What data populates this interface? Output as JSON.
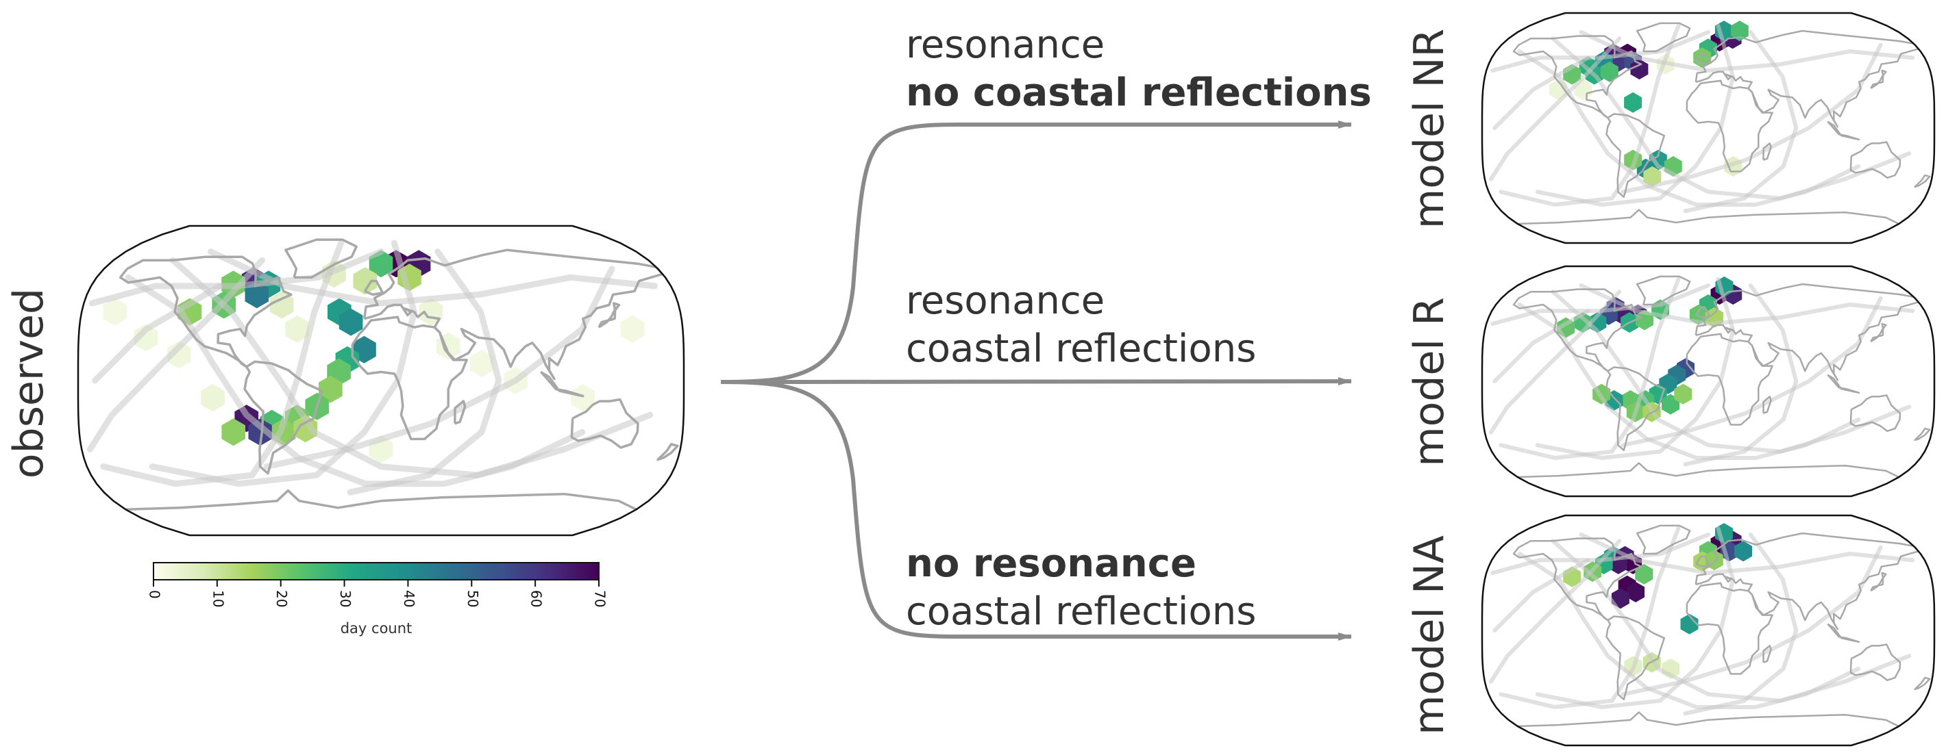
{
  "colors": {
    "ink": "#333333",
    "arrow": "#8a8a8a",
    "coast": "#a8a8a8",
    "track": "#c8c8c8",
    "ocean": "#ffffff",
    "viridis_stops": [
      "#fdfdf0",
      "#d9ebb6",
      "#a5d25e",
      "#58c16c",
      "#22a884",
      "#21908d",
      "#2c728e",
      "#3b528b",
      "#472d7b",
      "#440154"
    ]
  },
  "observed": {
    "label": "observed",
    "colorbar": {
      "label": "day count",
      "ticks": [
        "0",
        "10",
        "20",
        "30",
        "40",
        "50",
        "60",
        "70"
      ],
      "min": 0,
      "max": 70
    }
  },
  "scenarios": [
    {
      "line1": "resonance",
      "line2": "no coastal reflections",
      "bold_line": 2,
      "model_label": "model NR"
    },
    {
      "line1": "resonance",
      "line2": "coastal reflections",
      "bold_line": 0,
      "model_label": "model R"
    },
    {
      "line1": "no resonance",
      "line2": "coastal reflections",
      "bold_line": 1,
      "model_label": "model NA"
    }
  ],
  "hex_maps": {
    "observed": [
      {
        "lon": -80,
        "lat": 58,
        "v": 62
      },
      {
        "lon": -92,
        "lat": 56,
        "v": 20
      },
      {
        "lon": -70,
        "lat": 56,
        "v": 35
      },
      {
        "lon": -76,
        "lat": 50,
        "v": 45
      },
      {
        "lon": -95,
        "lat": 44,
        "v": 22
      },
      {
        "lon": -115,
        "lat": 40,
        "v": 18
      },
      {
        "lon": -60,
        "lat": 44,
        "v": 8
      },
      {
        "lon": -50,
        "lat": 30,
        "v": 5
      },
      {
        "lon": 10,
        "lat": 68,
        "v": 70
      },
      {
        "lon": 25,
        "lat": 68,
        "v": 66
      },
      {
        "lon": 0,
        "lat": 68,
        "v": 25
      },
      {
        "lon": 18,
        "lat": 60,
        "v": 15
      },
      {
        "lon": -10,
        "lat": 58,
        "v": 10
      },
      {
        "lon": -30,
        "lat": 62,
        "v": 8
      },
      {
        "lon": -25,
        "lat": 40,
        "v": 35
      },
      {
        "lon": -18,
        "lat": 34,
        "v": 40
      },
      {
        "lon": -10,
        "lat": 18,
        "v": 42
      },
      {
        "lon": -20,
        "lat": 12,
        "v": 30
      },
      {
        "lon": -25,
        "lat": 5,
        "v": 22
      },
      {
        "lon": -30,
        "lat": -5,
        "v": 18
      },
      {
        "lon": -38,
        "lat": -15,
        "v": 22
      },
      {
        "lon": -50,
        "lat": -22,
        "v": 20
      },
      {
        "lon": -65,
        "lat": -25,
        "v": 25
      },
      {
        "lon": -80,
        "lat": -22,
        "v": 66
      },
      {
        "lon": -72,
        "lat": -30,
        "v": 58
      },
      {
        "lon": -88,
        "lat": -30,
        "v": 18
      },
      {
        "lon": -58,
        "lat": -30,
        "v": 18
      },
      {
        "lon": -45,
        "lat": -28,
        "v": 14
      },
      {
        "lon": -100,
        "lat": -10,
        "v": 5
      },
      {
        "lon": -120,
        "lat": 15,
        "v": 4
      },
      {
        "lon": -140,
        "lat": 25,
        "v": 4
      },
      {
        "lon": 40,
        "lat": 20,
        "v": 4
      },
      {
        "lon": 60,
        "lat": 10,
        "v": 3
      },
      {
        "lon": 80,
        "lat": 0,
        "v": 3
      },
      {
        "lon": 0,
        "lat": -40,
        "v": 4
      },
      {
        "lon": 30,
        "lat": 40,
        "v": 5
      },
      {
        "lon": -160,
        "lat": 40,
        "v": 3
      },
      {
        "lon": 150,
        "lat": 30,
        "v": 3
      },
      {
        "lon": 120,
        "lat": -10,
        "v": 3
      }
    ],
    "model_nr": [
      {
        "lon": -80,
        "lat": 58,
        "v": 65
      },
      {
        "lon": -68,
        "lat": 58,
        "v": 70
      },
      {
        "lon": -74,
        "lat": 52,
        "v": 60
      },
      {
        "lon": -86,
        "lat": 52,
        "v": 40
      },
      {
        "lon": -62,
        "lat": 52,
        "v": 55
      },
      {
        "lon": -56,
        "lat": 46,
        "v": 66
      },
      {
        "lon": -98,
        "lat": 48,
        "v": 30
      },
      {
        "lon": -110,
        "lat": 42,
        "v": 22
      },
      {
        "lon": -92,
        "lat": 42,
        "v": 30
      },
      {
        "lon": -80,
        "lat": 44,
        "v": 25
      },
      {
        "lon": -60,
        "lat": 20,
        "v": 30
      },
      {
        "lon": 10,
        "lat": 68,
        "v": 70
      },
      {
        "lon": 22,
        "lat": 70,
        "v": 66
      },
      {
        "lon": 15,
        "lat": 76,
        "v": 35
      },
      {
        "lon": 0,
        "lat": 62,
        "v": 28
      },
      {
        "lon": -5,
        "lat": 55,
        "v": 20
      },
      {
        "lon": 30,
        "lat": 76,
        "v": 25
      },
      {
        "lon": -40,
        "lat": -25,
        "v": 35
      },
      {
        "lon": -50,
        "lat": -32,
        "v": 40
      },
      {
        "lon": -28,
        "lat": -30,
        "v": 22
      },
      {
        "lon": -60,
        "lat": -25,
        "v": 20
      },
      {
        "lon": -45,
        "lat": -38,
        "v": 12
      },
      {
        "lon": 20,
        "lat": -30,
        "v": 8
      },
      {
        "lon": -120,
        "lat": 30,
        "v": 5
      },
      {
        "lon": -100,
        "lat": 30,
        "v": 5
      },
      {
        "lon": -35,
        "lat": 50,
        "v": 5
      }
    ],
    "model_r": [
      {
        "lon": -78,
        "lat": 58,
        "v": 60
      },
      {
        "lon": -70,
        "lat": 52,
        "v": 65
      },
      {
        "lon": -82,
        "lat": 52,
        "v": 55
      },
      {
        "lon": -58,
        "lat": 52,
        "v": 64
      },
      {
        "lon": -90,
        "lat": 46,
        "v": 35
      },
      {
        "lon": -102,
        "lat": 46,
        "v": 25
      },
      {
        "lon": -64,
        "lat": 46,
        "v": 30
      },
      {
        "lon": -52,
        "lat": 48,
        "v": 22
      },
      {
        "lon": -115,
        "lat": 42,
        "v": 22
      },
      {
        "lon": -40,
        "lat": 56,
        "v": 25
      },
      {
        "lon": 10,
        "lat": 68,
        "v": 70
      },
      {
        "lon": 22,
        "lat": 68,
        "v": 64
      },
      {
        "lon": 15,
        "lat": 74,
        "v": 35
      },
      {
        "lon": 0,
        "lat": 60,
        "v": 28
      },
      {
        "lon": -8,
        "lat": 52,
        "v": 22
      },
      {
        "lon": 5,
        "lat": 50,
        "v": 15
      },
      {
        "lon": -18,
        "lat": 10,
        "v": 55
      },
      {
        "lon": -25,
        "lat": 5,
        "v": 45
      },
      {
        "lon": -32,
        "lat": -2,
        "v": 40
      },
      {
        "lon": -40,
        "lat": -10,
        "v": 30
      },
      {
        "lon": -50,
        "lat": -15,
        "v": 25
      },
      {
        "lon": -62,
        "lat": -15,
        "v": 22
      },
      {
        "lon": -75,
        "lat": -15,
        "v": 35
      },
      {
        "lon": -85,
        "lat": -10,
        "v": 20
      },
      {
        "lon": -58,
        "lat": -24,
        "v": 20
      },
      {
        "lon": -45,
        "lat": -24,
        "v": 15
      },
      {
        "lon": -30,
        "lat": -18,
        "v": 25
      },
      {
        "lon": -20,
        "lat": -10,
        "v": 18
      }
    ],
    "model_na": [
      {
        "lon": -80,
        "lat": 58,
        "v": 35
      },
      {
        "lon": -70,
        "lat": 58,
        "v": 65
      },
      {
        "lon": -62,
        "lat": 52,
        "v": 70
      },
      {
        "lon": -74,
        "lat": 52,
        "v": 66
      },
      {
        "lon": -86,
        "lat": 52,
        "v": 30
      },
      {
        "lon": -94,
        "lat": 46,
        "v": 20
      },
      {
        "lon": -52,
        "lat": 44,
        "v": 22
      },
      {
        "lon": -65,
        "lat": 35,
        "v": 70
      },
      {
        "lon": -58,
        "lat": 30,
        "v": 68
      },
      {
        "lon": -70,
        "lat": 25,
        "v": 66
      },
      {
        "lon": -110,
        "lat": 42,
        "v": 14
      },
      {
        "lon": 10,
        "lat": 68,
        "v": 70
      },
      {
        "lon": 22,
        "lat": 70,
        "v": 66
      },
      {
        "lon": 18,
        "lat": 62,
        "v": 55
      },
      {
        "lon": 30,
        "lat": 62,
        "v": 40
      },
      {
        "lon": 15,
        "lat": 76,
        "v": 35
      },
      {
        "lon": 0,
        "lat": 62,
        "v": 22
      },
      {
        "lon": -5,
        "lat": 54,
        "v": 15
      },
      {
        "lon": 5,
        "lat": 55,
        "v": 18
      },
      {
        "lon": -15,
        "lat": 5,
        "v": 35
      },
      {
        "lon": -45,
        "lat": -25,
        "v": 10
      },
      {
        "lon": -60,
        "lat": -28,
        "v": 8
      },
      {
        "lon": -30,
        "lat": -30,
        "v": 8
      }
    ]
  }
}
